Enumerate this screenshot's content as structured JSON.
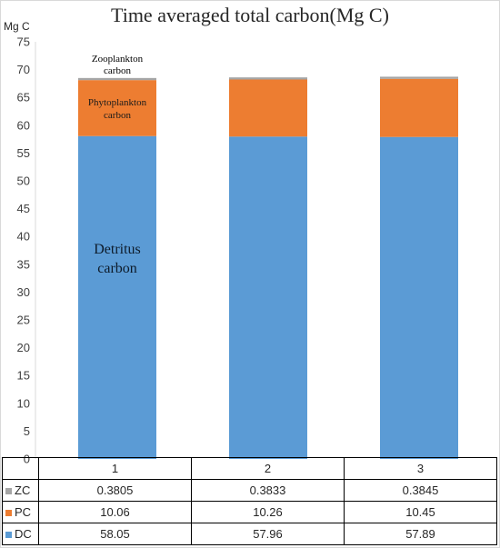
{
  "chart_data": {
    "type": "bar",
    "stacked": true,
    "title": "Time averaged total carbon(Mg C)",
    "ylabel": "Mg C",
    "xlabel": "",
    "ylim": [
      0,
      75
    ],
    "yticks": [
      0,
      5,
      10,
      15,
      20,
      25,
      30,
      35,
      40,
      45,
      50,
      55,
      60,
      65,
      70,
      75
    ],
    "categories": [
      "1",
      "2",
      "3"
    ],
    "series": [
      {
        "name": "DC",
        "color": "#5b9bd5",
        "values": [
          58.05,
          57.96,
          57.89
        ]
      },
      {
        "name": "PC",
        "color": "#ed7d31",
        "values": [
          10.06,
          10.26,
          10.45
        ]
      },
      {
        "name": "ZC",
        "color": "#a5a5a5",
        "values": [
          0.3805,
          0.3833,
          0.3845
        ]
      }
    ],
    "table_rows": [
      {
        "name": "ZC",
        "color": "#a5a5a5",
        "cells": [
          "0.3805",
          "0.3833",
          "0.3845"
        ]
      },
      {
        "name": "PC",
        "color": "#ed7d31",
        "cells": [
          "10.06",
          "10.26",
          "10.45"
        ]
      },
      {
        "name": "DC",
        "color": "#5b9bd5",
        "cells": [
          "58.05",
          "57.96",
          "57.89"
        ]
      }
    ],
    "annotations": {
      "zooplankton": [
        "Zooplankton",
        "carbon"
      ],
      "phytoplankton": [
        "Phytoplankton",
        "carbon"
      ],
      "detritus": [
        "Detritus",
        "carbon"
      ]
    },
    "grid": false,
    "legend": "data-table"
  }
}
